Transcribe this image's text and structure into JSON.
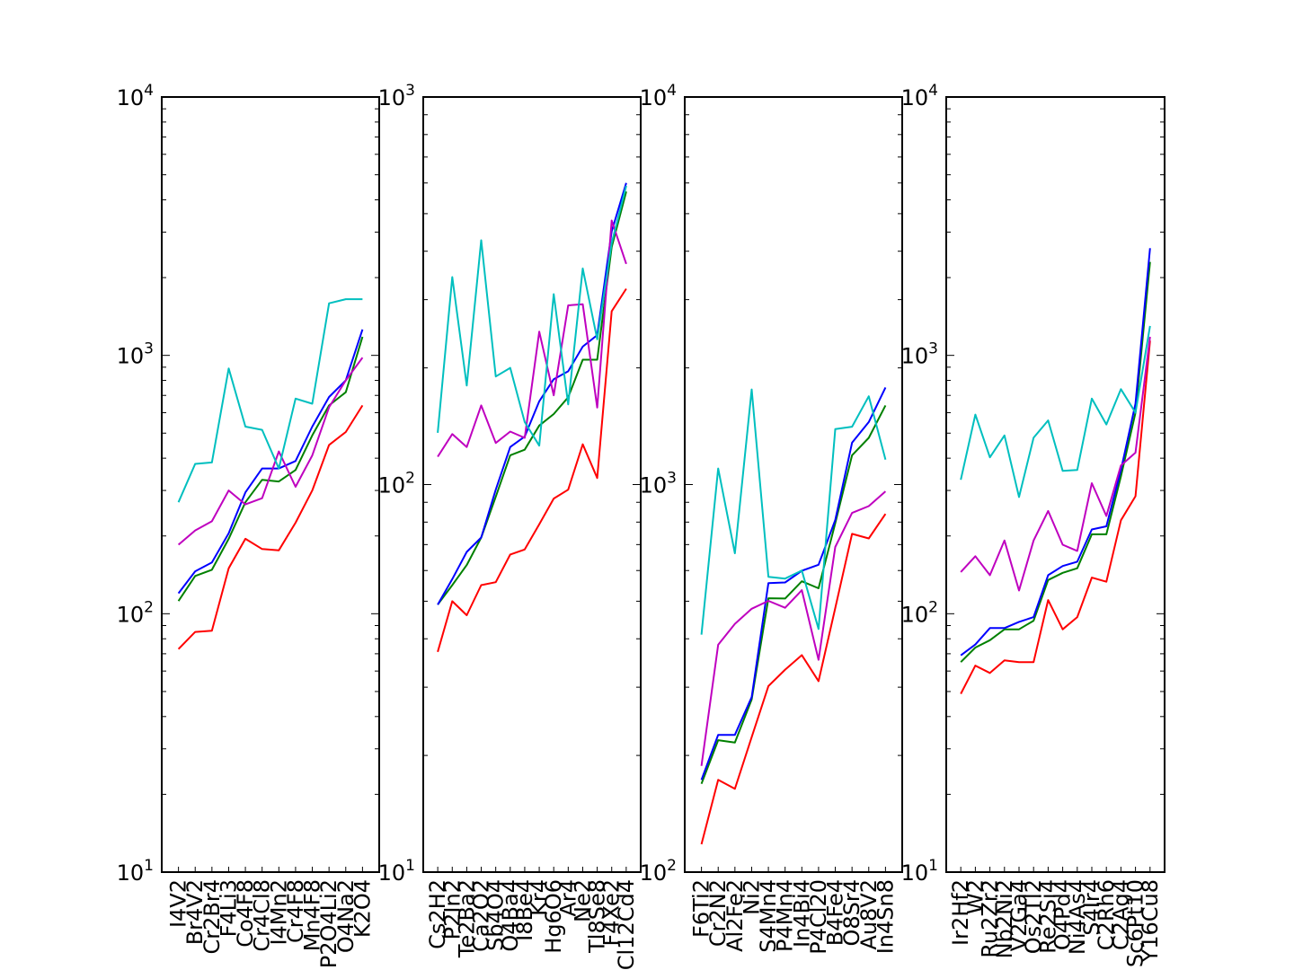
{
  "chart_data": [
    {
      "type": "line",
      "yscale": "log",
      "ylim": [
        10,
        10000
      ],
      "ytick_exponents": [
        1,
        2,
        3,
        4
      ],
      "categories": [
        "I4V2",
        "Br4V2",
        "Cr2Br4",
        "F4Li3",
        "Co4F8",
        "Cr4Cl8",
        "I4Mn2",
        "Cr4F8",
        "Mn4F8",
        "P2O4Li2",
        "O4Na2",
        "K2O4"
      ],
      "series": [
        {
          "color": "#ff0000",
          "values": [
            73,
            85,
            86,
            150,
            195,
            178,
            176,
            225,
            300,
            450,
            505,
            640
          ]
        },
        {
          "color": "#008000",
          "values": [
            112,
            140,
            148,
            195,
            270,
            330,
            325,
            360,
            490,
            640,
            720,
            1180
          ]
        },
        {
          "color": "#0000ff",
          "values": [
            120,
            146,
            158,
            205,
            295,
            365,
            365,
            390,
            530,
            690,
            800,
            1260
          ]
        },
        {
          "color": "#bf00bf",
          "values": [
            185,
            210,
            228,
            300,
            265,
            280,
            425,
            310,
            410,
            630,
            800,
            980
          ]
        },
        {
          "color": "#00bfbf",
          "values": [
            270,
            380,
            385,
            890,
            530,
            515,
            365,
            680,
            650,
            1590,
            1650,
            1650
          ]
        }
      ]
    },
    {
      "type": "line",
      "yscale": "log",
      "ylim": [
        10,
        1000
      ],
      "ytick_exponents": [
        1,
        2,
        3
      ],
      "categories": [
        "Cs2H2",
        "P2In2",
        "Te2Ba2",
        "Ca2O2",
        "Sb4O4",
        "O4Ba4",
        "I8Be4",
        "Kr4",
        "Hg6O6",
        "Ar4",
        "Ne2",
        "Tl8Se8",
        "F4Xe2",
        "Cl12Cd4"
      ],
      "series": [
        {
          "color": "#ff0000",
          "values": [
            37,
            50,
            46,
            55,
            56,
            66,
            68,
            79,
            92,
            97,
            127,
            104,
            280,
            320
          ]
        },
        {
          "color": "#008000",
          "values": [
            49,
            55,
            62,
            73,
            93,
            119,
            123,
            142,
            152,
            168,
            210,
            210,
            410,
            570
          ]
        },
        {
          "color": "#0000ff",
          "values": [
            49,
            57,
            67,
            73,
            97,
            125,
            133,
            164,
            187,
            196,
            227,
            243,
            450,
            600
          ]
        },
        {
          "color": "#bf00bf",
          "values": [
            118,
            135,
            125,
            160,
            128,
            137,
            132,
            248,
            170,
            290,
            292,
            158,
            480,
            371
          ]
        },
        {
          "color": "#00bfbf",
          "values": [
            136,
            343,
            180,
            427,
            190,
            200,
            145,
            126,
            310,
            161,
            361,
            237,
            420,
            590
          ]
        }
      ]
    },
    {
      "type": "line",
      "yscale": "log",
      "ylim": [
        100,
        10000
      ],
      "ytick_exponents": [
        2,
        3,
        4
      ],
      "categories": [
        "F6Ti2",
        "Cr2N2",
        "Al2Fe2",
        "Ni2",
        "S4Mn4",
        "P4Mn4",
        "In4Bi4",
        "P4Cl20",
        "B4Fe4",
        "O8Sr4",
        "Au8V2",
        "In4Sn8"
      ],
      "series": [
        {
          "color": "#ff0000",
          "values": [
            118,
            173,
            164,
            223,
            302,
            333,
            363,
            311,
            480,
            746,
            726,
            840
          ]
        },
        {
          "color": "#008000",
          "values": [
            169,
            219,
            216,
            279,
            509,
            508,
            563,
            540,
            795,
            1190,
            1320,
            1600
          ]
        },
        {
          "color": "#0000ff",
          "values": [
            173,
            226,
            226,
            283,
            557,
            559,
            599,
            621,
            810,
            1282,
            1450,
            1780
          ]
        },
        {
          "color": "#bf00bf",
          "values": [
            188,
            386,
            437,
            478,
            501,
            481,
            534,
            353,
            690,
            845,
            880,
            960
          ]
        },
        {
          "color": "#00bfbf",
          "values": [
            410,
            1100,
            665,
            1760,
            578,
            572,
            600,
            424,
            1390,
            1410,
            1690,
            1160
          ]
        }
      ]
    },
    {
      "type": "line",
      "yscale": "log",
      "ylim": [
        10,
        10000
      ],
      "ytick_exponents": [
        1,
        2,
        3,
        4
      ],
      "categories": [
        "Ir2Hf2",
        "W2",
        "Ru2Zr2",
        "Nb2Ni2",
        "V2Ga4",
        "Os2Tl2",
        "Re2Si4",
        "O4Pd4",
        "Ni4As4",
        "S4Ir4",
        "C2Rh6",
        "C2Ag4",
        "Sc6Pt10",
        "Y16Cu8"
      ],
      "series": [
        {
          "color": "#ff0000",
          "values": [
            49,
            63,
            59,
            66,
            65,
            65,
            113,
            87,
            97,
            138,
            133,
            230,
            285,
            1140
          ]
        },
        {
          "color": "#008000",
          "values": [
            65,
            74,
            79,
            87,
            87,
            94,
            135,
            144,
            150,
            203,
            203,
            340,
            600,
            2300
          ]
        },
        {
          "color": "#0000ff",
          "values": [
            69,
            76,
            88,
            88,
            93,
            97,
            141,
            153,
            159,
            212,
            218,
            360,
            650,
            2600
          ]
        },
        {
          "color": "#bf00bf",
          "values": [
            145,
            167,
            141,
            192,
            123,
            192,
            250,
            185,
            175,
            320,
            239,
            375,
            420,
            1180
          ]
        },
        {
          "color": "#00bfbf",
          "values": [
            330,
            590,
            403,
            490,
            283,
            480,
            560,
            357,
            360,
            680,
            540,
            740,
            600,
            1300
          ]
        }
      ]
    }
  ]
}
